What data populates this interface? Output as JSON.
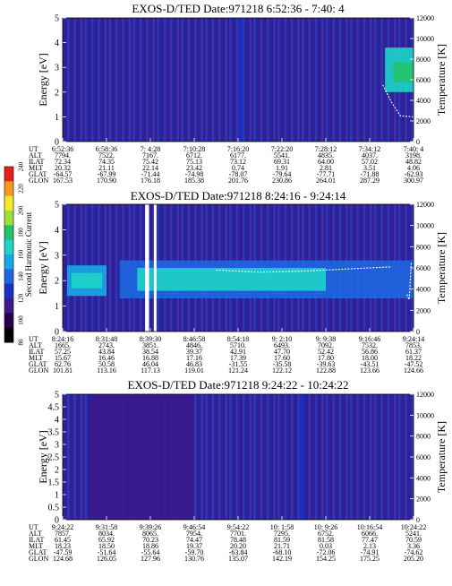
{
  "colorbar": {
    "label": "Second Harmonic Current",
    "ticks": [
      "80",
      "100",
      "120",
      "140",
      "160",
      "180",
      "200",
      "220",
      "240"
    ],
    "colors": [
      "#000000",
      "#2a0050",
      "#3a1a8c",
      "#1c30c8",
      "#1f66e0",
      "#19a8e6",
      "#1ed4c8",
      "#22c36a",
      "#9ee03a",
      "#f2ea2a",
      "#f59a1c",
      "#e8201a"
    ]
  },
  "panels": [
    {
      "title": "EXOS-D/TED   Date:971218  6:52:36 - 7:40: 4",
      "ylabel_left": "Energy [eV]",
      "ylabel_right": "Temperature [K]",
      "left_ticks": [
        "0",
        "1",
        "2",
        "3",
        "4",
        "5"
      ],
      "right_ticks": [
        "0",
        "2000",
        "4000",
        "6000",
        "8000",
        "10000",
        "12000"
      ],
      "table": {
        "labels": [
          "UT",
          "ALT",
          "ILAT",
          "MLT",
          "GLAT",
          "GLON"
        ],
        "rows": [
          [
            "6:52:36",
            "6:58:36",
            "7: 4:28",
            "7:10:28",
            "7:16:20",
            "7:22:20",
            "7:28:12",
            "7:34:12",
            "7:40: 4"
          ],
          [
            "7794.",
            "7522.",
            "7167.",
            "6712.",
            "6177.",
            "5541.",
            "4835.",
            "4037.",
            "3198."
          ],
          [
            "72.34",
            "74.35",
            "75.42",
            "75.13",
            "73.12",
            "69.31",
            "64.00",
            "57.02",
            "48.82"
          ],
          [
            "20.32",
            "21.11",
            "22.14",
            "23.42",
            "0.74",
            "1.91",
            "2.81",
            "3.51",
            "4.06"
          ],
          [
            "-64.57",
            "-67.99",
            "-71.44",
            "-74.98",
            "-78.07",
            "-79.64",
            "-77.71",
            "-71.88",
            "-62.93"
          ],
          [
            "167.53",
            "170.90",
            "176.18",
            "185.38",
            "201.76",
            "230.86",
            "264.01",
            "287.29",
            "300.97"
          ]
        ]
      }
    },
    {
      "title": "EXOS-D/TED   Date:971218  8:24:16 - 9:24:14",
      "ylabel_left": "Energy [eV]",
      "ylabel_right": "Temperature [K]",
      "left_ticks": [
        "0",
        "1",
        "2",
        "3",
        "4",
        "5"
      ],
      "right_ticks": [
        "0",
        "2000",
        "4000",
        "6000",
        "8000",
        "10000",
        "12000"
      ],
      "table": {
        "labels": [
          "UT",
          "ALT",
          "ILAT",
          "MLT",
          "GLAT",
          "GLON"
        ],
        "rows": [
          [
            "8:24:16",
            "8:31:48",
            "8:39:30",
            "8:46:58",
            "8:54:18",
            "9: 2:10",
            "9: 9:38",
            "9:16:46",
            "9:24:14"
          ],
          [
            "1665.",
            "2743.",
            "3851.",
            "4846.",
            "5710.",
            "6493.",
            "7092.",
            "7532.",
            "7853."
          ],
          [
            "57.25",
            "43.84",
            "38.54",
            "39.37",
            "42.91",
            "47.70",
            "52.42",
            "56.86",
            "61.37"
          ],
          [
            "15.67",
            "16.46",
            "16.88",
            "17.16",
            "17.39",
            "17.60",
            "17.80",
            "18.00",
            "18.22"
          ],
          [
            "62.76",
            "50.58",
            "46.04",
            "46.83",
            "-31.55",
            "-35.58",
            "-39.63",
            "-43.51",
            "-47.52"
          ],
          [
            "101.81",
            "113.16",
            "117.13",
            "119.01",
            "121.24",
            "122.12",
            "122.88",
            "123.66",
            "124.66"
          ]
        ]
      }
    },
    {
      "title": "EXOS-D/TED   Date:971218  9:24:22 - 10:24:22",
      "ylabel_left": "Energy [eV]",
      "ylabel_right": "Temperature [K]",
      "left_ticks": [
        "0",
        "0.5",
        "1",
        "1.5",
        "2",
        "2.5",
        "3",
        "3.5",
        "4",
        "4.5",
        "5"
      ],
      "right_ticks": [
        "0",
        "2000",
        "4000",
        "6000",
        "8000",
        "10000",
        "12000"
      ],
      "table": {
        "labels": [
          "UT",
          "ALT",
          "ILAT",
          "MLT",
          "GLAT",
          "GLON"
        ],
        "rows": [
          [
            "9:24:22",
            "9:31:58",
            "9:39:26",
            "9:46:54",
            "9:54:22",
            "10: 1:58",
            "10: 9:26",
            "10:16:54",
            "10:24:22"
          ],
          [
            "7857.",
            "8034.",
            "8065.",
            "7954.",
            "7701.",
            "7295.",
            "6752.",
            "6066.",
            "5241."
          ],
          [
            "61.45",
            "65.92",
            "70.23",
            "74.47",
            "78.48",
            "81.59",
            "81.58",
            "77.47",
            "70.59"
          ],
          [
            "18.23",
            "18.50",
            "18.86",
            "19.37",
            "20.20",
            "21.71",
            "0.03",
            "2.13",
            "3.36"
          ],
          [
            "-47.59",
            "-51.64",
            "-55.64",
            "-59.70",
            "-63.84",
            "-68.10",
            "-72.06",
            "-74.91",
            "-74.62"
          ],
          [
            "124.68",
            "126.05",
            "127.96",
            "130.76",
            "135.07",
            "142.19",
            "154.25",
            "175.25",
            "205.20"
          ]
        ]
      }
    }
  ],
  "chart_data": [
    {
      "type": "heatmap",
      "title": "EXOS-D/TED   Date:971218  6:52:36 - 7:40: 4",
      "xlabel": "UT",
      "ylabel": "Energy [eV]",
      "ylabel_right": "Temperature [K]",
      "ylim": [
        0,
        5
      ],
      "ylim_right": [
        0,
        12000
      ],
      "x": [
        "6:52:36",
        "6:58:36",
        "7: 4:28",
        "7:10:28",
        "7:16:20",
        "7:22:20",
        "7:28:12",
        "7:34:12",
        "7:40: 4"
      ],
      "colorbar_label": "Second Harmonic Current",
      "colorbar_range": [
        80,
        240
      ],
      "background_level": 110,
      "features": [
        {
          "x_start": 7.35,
          "x_end": 8.0,
          "energy_low": 2.0,
          "energy_high": 3.8,
          "level": 165
        },
        {
          "x_start": 7.55,
          "x_end": 8.0,
          "energy_low": 2.4,
          "energy_high": 3.2,
          "level": 180
        },
        {
          "x_start": 4.0,
          "x_end": 4.1,
          "energy_low": 0.0,
          "energy_high": 5.0,
          "level": 125
        }
      ],
      "temperature_curve": {
        "x": [
          7.3,
          7.5,
          7.7,
          8.0
        ],
        "y": [
          5500,
          3800,
          2500,
          2400
        ]
      }
    },
    {
      "type": "heatmap",
      "title": "EXOS-D/TED   Date:971218  8:24:16 - 9:24:14",
      "xlabel": "UT",
      "ylabel": "Energy [eV]",
      "ylabel_right": "Temperature [K]",
      "ylim": [
        0,
        5
      ],
      "ylim_right": [
        0,
        12000
      ],
      "x": [
        "8:24:16",
        "8:31:48",
        "8:39:30",
        "8:46:58",
        "8:54:18",
        "9: 2:10",
        "9: 9:38",
        "9:16:46",
        "9:24:14"
      ],
      "colorbar_label": "Second Harmonic Current",
      "colorbar_range": [
        80,
        240
      ],
      "background_level": 112,
      "features": [
        {
          "x_start": 0.1,
          "x_end": 1.0,
          "energy_low": 1.4,
          "energy_high": 2.6,
          "level": 150
        },
        {
          "x_start": 0.2,
          "x_end": 0.9,
          "energy_low": 1.7,
          "energy_high": 2.3,
          "level": 165
        },
        {
          "x_start": 1.3,
          "x_end": 8.0,
          "energy_low": 1.3,
          "energy_high": 2.8,
          "level": 140
        },
        {
          "x_start": 1.7,
          "x_end": 6.0,
          "energy_low": 1.6,
          "energy_high": 2.5,
          "level": 160
        }
      ],
      "gaps": [
        {
          "x_start": 1.88,
          "x_end": 1.97
        },
        {
          "x_start": 2.08,
          "x_end": 2.14
        }
      ],
      "temperature_curve": {
        "x": [
          3.5,
          4.5,
          5.5,
          6.5,
          7.5
        ],
        "y": [
          5800,
          5600,
          5700,
          5900,
          6100
        ]
      },
      "temperature_curve_2": {
        "x": [
          7.85,
          7.9,
          7.95
        ],
        "y": [
          3500,
          3000,
          6500
        ]
      }
    },
    {
      "type": "heatmap",
      "title": "EXOS-D/TED   Date:971218  9:24:22 - 10:24:22",
      "xlabel": "UT",
      "ylabel": "Energy [eV]",
      "ylabel_right": "Temperature [K]",
      "ylim": [
        0,
        5
      ],
      "ylim_right": [
        0,
        12000
      ],
      "x": [
        "9:24:22",
        "9:31:58",
        "9:39:26",
        "9:46:54",
        "9:54:22",
        "10: 1:58",
        "10: 9:26",
        "10:16:54",
        "10:24:22"
      ],
      "colorbar_label": "Second Harmonic Current",
      "colorbar_range": [
        80,
        240
      ],
      "background_level": 108,
      "features": [
        {
          "x_start": 0.6,
          "x_end": 3.0,
          "energy_low": 0.0,
          "energy_high": 5.0,
          "level": 114
        },
        {
          "x_start": 5.4,
          "x_end": 5.5,
          "energy_low": 0.0,
          "energy_high": 5.0,
          "level": 122
        }
      ],
      "temperature_curve": {
        "x": [],
        "y": []
      }
    }
  ]
}
